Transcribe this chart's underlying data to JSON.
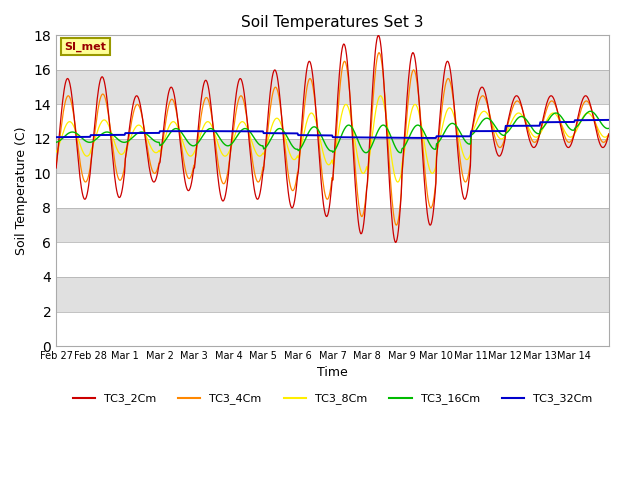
{
  "title": "Soil Temperatures Set 3",
  "xlabel": "Time",
  "ylabel": "Soil Temperature (C)",
  "ylim": [
    0,
    18
  ],
  "yticks": [
    0,
    2,
    4,
    6,
    8,
    10,
    12,
    14,
    16,
    18
  ],
  "n_days": 16,
  "pts_per_day": 48,
  "day_labels": [
    "Feb 27",
    "Feb 28",
    "Mar 1",
    "Mar 2",
    "Mar 3",
    "Mar 4",
    "Mar 5",
    "Mar 6",
    "Mar 7",
    "Mar 8",
    "Mar 9",
    "Mar 10",
    "Mar 11",
    "Mar 12",
    "Mar 13",
    "Mar 14"
  ],
  "series_colors": {
    "TC3_2Cm": "#cc0000",
    "TC3_4Cm": "#ff8800",
    "TC3_8Cm": "#ffee00",
    "TC3_16Cm": "#00bb00",
    "TC3_32Cm": "#0000cc"
  },
  "band_colors": [
    "#ffffff",
    "#e0e0e0"
  ],
  "fig_bg": "#ffffff",
  "annotation_text": "SI_met",
  "annotation_facecolor": "#ffff99",
  "annotation_edgecolor": "#999900",
  "annotation_textcolor": "#990000",
  "tc2_base": [
    12.0,
    12.1,
    12.0,
    12.0,
    11.9,
    12.0,
    12.0,
    12.0,
    12.0,
    12.0,
    12.0,
    12.5,
    13.0,
    13.0,
    13.0,
    13.0
  ],
  "tc2_amp": [
    3.5,
    3.5,
    2.5,
    3.0,
    3.5,
    3.5,
    4.0,
    4.5,
    5.5,
    6.0,
    5.0,
    4.0,
    2.0,
    1.5,
    1.5,
    1.5
  ],
  "tc4_base": [
    12.0,
    12.1,
    12.0,
    12.0,
    11.9,
    12.0,
    12.0,
    12.0,
    12.0,
    12.0,
    12.0,
    12.5,
    13.0,
    13.0,
    13.0,
    13.0
  ],
  "tc4_amp": [
    2.5,
    2.5,
    2.0,
    2.3,
    2.5,
    2.5,
    3.0,
    3.5,
    4.5,
    5.0,
    4.0,
    3.0,
    1.5,
    1.2,
    1.2,
    1.2
  ],
  "tc8_base": [
    12.0,
    12.1,
    12.0,
    12.0,
    12.0,
    12.0,
    12.0,
    12.0,
    12.0,
    12.0,
    12.0,
    12.3,
    12.8,
    12.8,
    12.8,
    12.8
  ],
  "tc8_amp": [
    1.0,
    1.0,
    0.8,
    1.0,
    1.0,
    1.0,
    1.2,
    1.5,
    2.0,
    2.5,
    2.0,
    1.5,
    0.8,
    0.7,
    0.7,
    0.7
  ],
  "tc16_base": [
    12.1,
    12.1,
    12.1,
    12.1,
    12.1,
    12.1,
    12.0,
    12.0,
    12.0,
    12.0,
    12.1,
    12.3,
    12.7,
    12.8,
    13.0,
    13.1
  ],
  "tc16_amp": [
    0.3,
    0.3,
    0.3,
    0.5,
    0.5,
    0.5,
    0.6,
    0.7,
    0.8,
    0.8,
    0.7,
    0.6,
    0.5,
    0.5,
    0.5,
    0.5
  ],
  "tc32_base": [
    12.1,
    12.2,
    12.3,
    12.4,
    12.4,
    12.4,
    12.3,
    12.2,
    12.1,
    12.1,
    12.1,
    12.2,
    12.5,
    12.8,
    13.0,
    13.1
  ]
}
